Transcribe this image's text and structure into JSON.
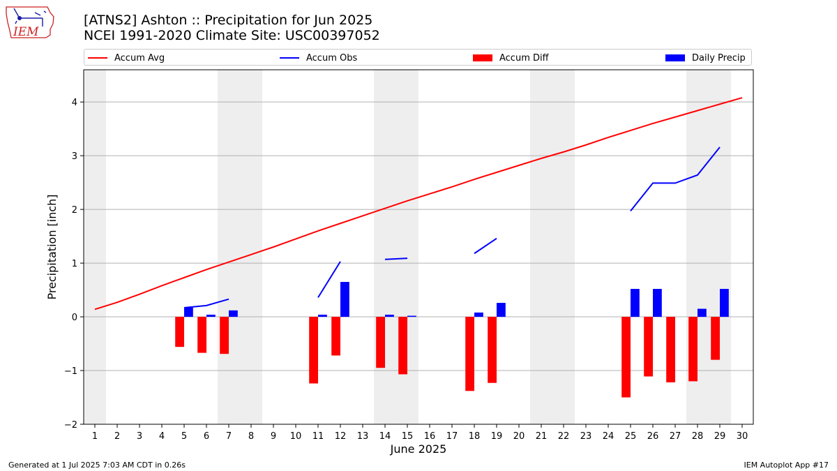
{
  "header": {
    "title_line1": "[ATNS2] Ashton :: Precipitation for Jun 2025",
    "title_line2": "NCEI 1991-2020 Climate Site: USC00397052"
  },
  "logo": {
    "text": "IEM",
    "color": "#cc2222"
  },
  "footer": {
    "left": "Generated at 1 Jul 2025 7:03 AM CDT in 0.26s",
    "right": "IEM Autoplot App #17"
  },
  "colors": {
    "avg": "#ff0000",
    "obs": "#0000ff",
    "diff": "#ff0000",
    "daily": "#0000ff",
    "weekend": "#eeeeee",
    "grid": "#b0b0b0"
  },
  "legend": {
    "items": [
      {
        "label": "Accum Avg",
        "kind": "line",
        "color": "#ff0000"
      },
      {
        "label": "Accum Obs",
        "kind": "line",
        "color": "#0000ff"
      },
      {
        "label": "Accum Diff",
        "kind": "box",
        "color": "#ff0000"
      },
      {
        "label": "Daily Precip",
        "kind": "box",
        "color": "#0000ff"
      }
    ]
  },
  "chart_data": {
    "type": "bar",
    "xlabel": "June 2025",
    "ylabel": "Precipitation [inch]",
    "x": [
      1,
      2,
      3,
      4,
      5,
      6,
      7,
      8,
      9,
      10,
      11,
      12,
      13,
      14,
      15,
      16,
      17,
      18,
      19,
      20,
      21,
      22,
      23,
      24,
      25,
      26,
      27,
      28,
      29,
      30
    ],
    "xlim": [
      0.5,
      30.5
    ],
    "ylim": [
      -2,
      4.6
    ],
    "yticks": [
      -2,
      -1,
      0,
      1,
      2,
      3,
      4
    ],
    "grid": true,
    "weekend_days": [
      1,
      7,
      8,
      14,
      15,
      21,
      22,
      28,
      29
    ],
    "series": [
      {
        "name": "Accum Avg",
        "kind": "line",
        "values": [
          0.14,
          0.27,
          0.42,
          0.58,
          0.73,
          0.88,
          1.02,
          1.16,
          1.3,
          1.45,
          1.6,
          1.74,
          1.88,
          2.02,
          2.16,
          2.29,
          2.42,
          2.56,
          2.69,
          2.82,
          2.95,
          3.07,
          3.2,
          3.34,
          3.47,
          3.6,
          3.72,
          3.84,
          3.96,
          4.08
        ]
      },
      {
        "name": "Accum Obs",
        "kind": "line",
        "segments": [
          {
            "x": [
              5,
              6,
              7
            ],
            "values": [
              0.17,
              0.21,
              0.33
            ]
          },
          {
            "x": [
              11,
              12
            ],
            "values": [
              0.36,
              1.03
            ]
          },
          {
            "x": [
              14,
              15
            ],
            "values": [
              1.07,
              1.09
            ]
          },
          {
            "x": [
              18,
              19
            ],
            "values": [
              1.18,
              1.46
            ]
          },
          {
            "x": [
              25,
              26,
              27,
              28,
              29
            ],
            "values": [
              1.97,
              2.49,
              2.49,
              2.64,
              3.16
            ]
          }
        ]
      },
      {
        "name": "Accum Diff",
        "kind": "bar",
        "x": [
          5,
          6,
          7,
          11,
          12,
          14,
          15,
          18,
          19,
          25,
          26,
          27,
          28,
          29
        ],
        "values": [
          -0.56,
          -0.67,
          -0.69,
          -1.24,
          -0.72,
          -0.95,
          -1.07,
          -1.38,
          -1.23,
          -1.5,
          -1.11,
          -1.22,
          -1.2,
          -0.8
        ]
      },
      {
        "name": "Daily Precip",
        "kind": "bar",
        "x": [
          5,
          6,
          7,
          11,
          12,
          14,
          15,
          18,
          19,
          25,
          26,
          27,
          28,
          29
        ],
        "values": [
          0.17,
          0.04,
          0.12,
          0.04,
          0.65,
          0.04,
          0.02,
          0.08,
          0.26,
          0.52,
          0.52,
          0.0,
          0.15,
          0.52
        ]
      }
    ]
  }
}
